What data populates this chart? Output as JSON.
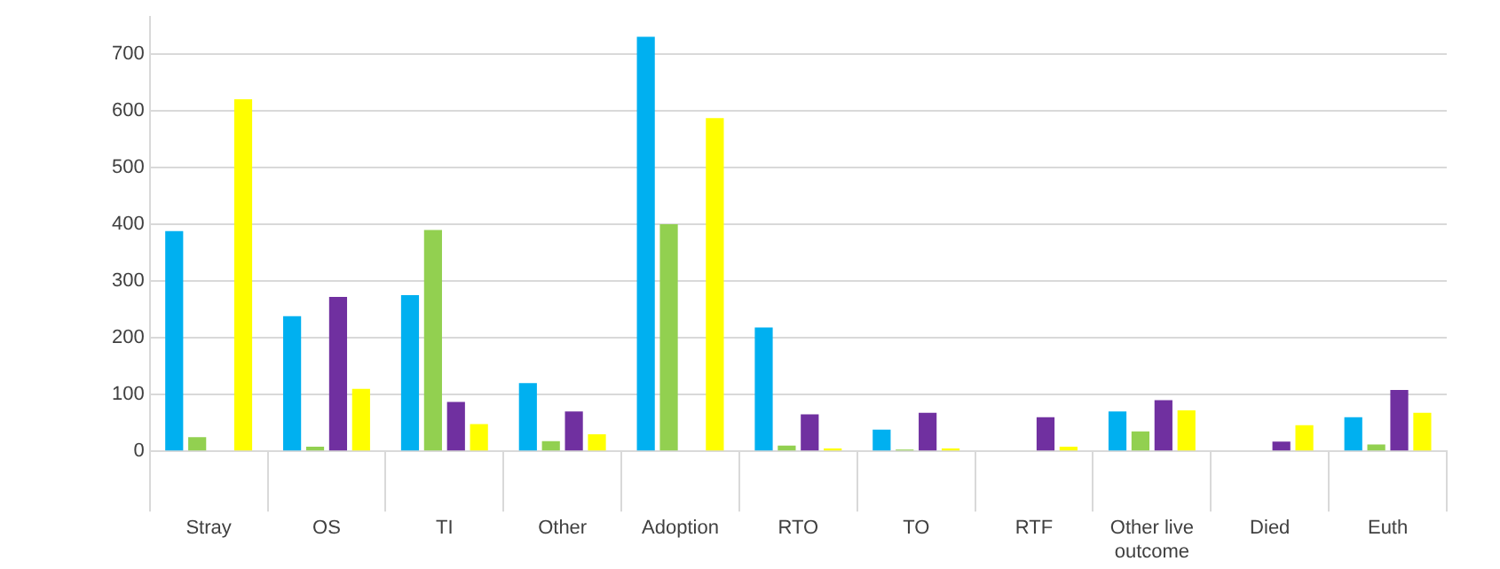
{
  "chart_data": {
    "type": "bar",
    "categories": [
      "Stray",
      "OS",
      "TI",
      "Other",
      "Adoption",
      "RTO",
      "TO",
      "RTF",
      "Other live outcome",
      "Died",
      "Euth"
    ],
    "series": [
      {
        "color": "#00b0f0",
        "values": [
          388,
          238,
          275,
          120,
          730,
          218,
          38,
          0,
          70,
          0,
          60
        ]
      },
      {
        "color": "#92d050",
        "values": [
          25,
          8,
          390,
          18,
          400,
          10,
          3,
          0,
          35,
          0,
          12
        ]
      },
      {
        "color": "#7030a0",
        "values": [
          null,
          272,
          87,
          70,
          null,
          65,
          68,
          60,
          90,
          17,
          108
        ]
      },
      {
        "color": "#ffff00",
        "values": [
          620,
          110,
          48,
          30,
          587,
          5,
          5,
          8,
          72,
          46,
          68
        ]
      }
    ],
    "ylim": [
      0,
      765
    ],
    "yticks": [
      0,
      100,
      200,
      300,
      400,
      500,
      600,
      700
    ],
    "grid": "y",
    "legend": false
  }
}
